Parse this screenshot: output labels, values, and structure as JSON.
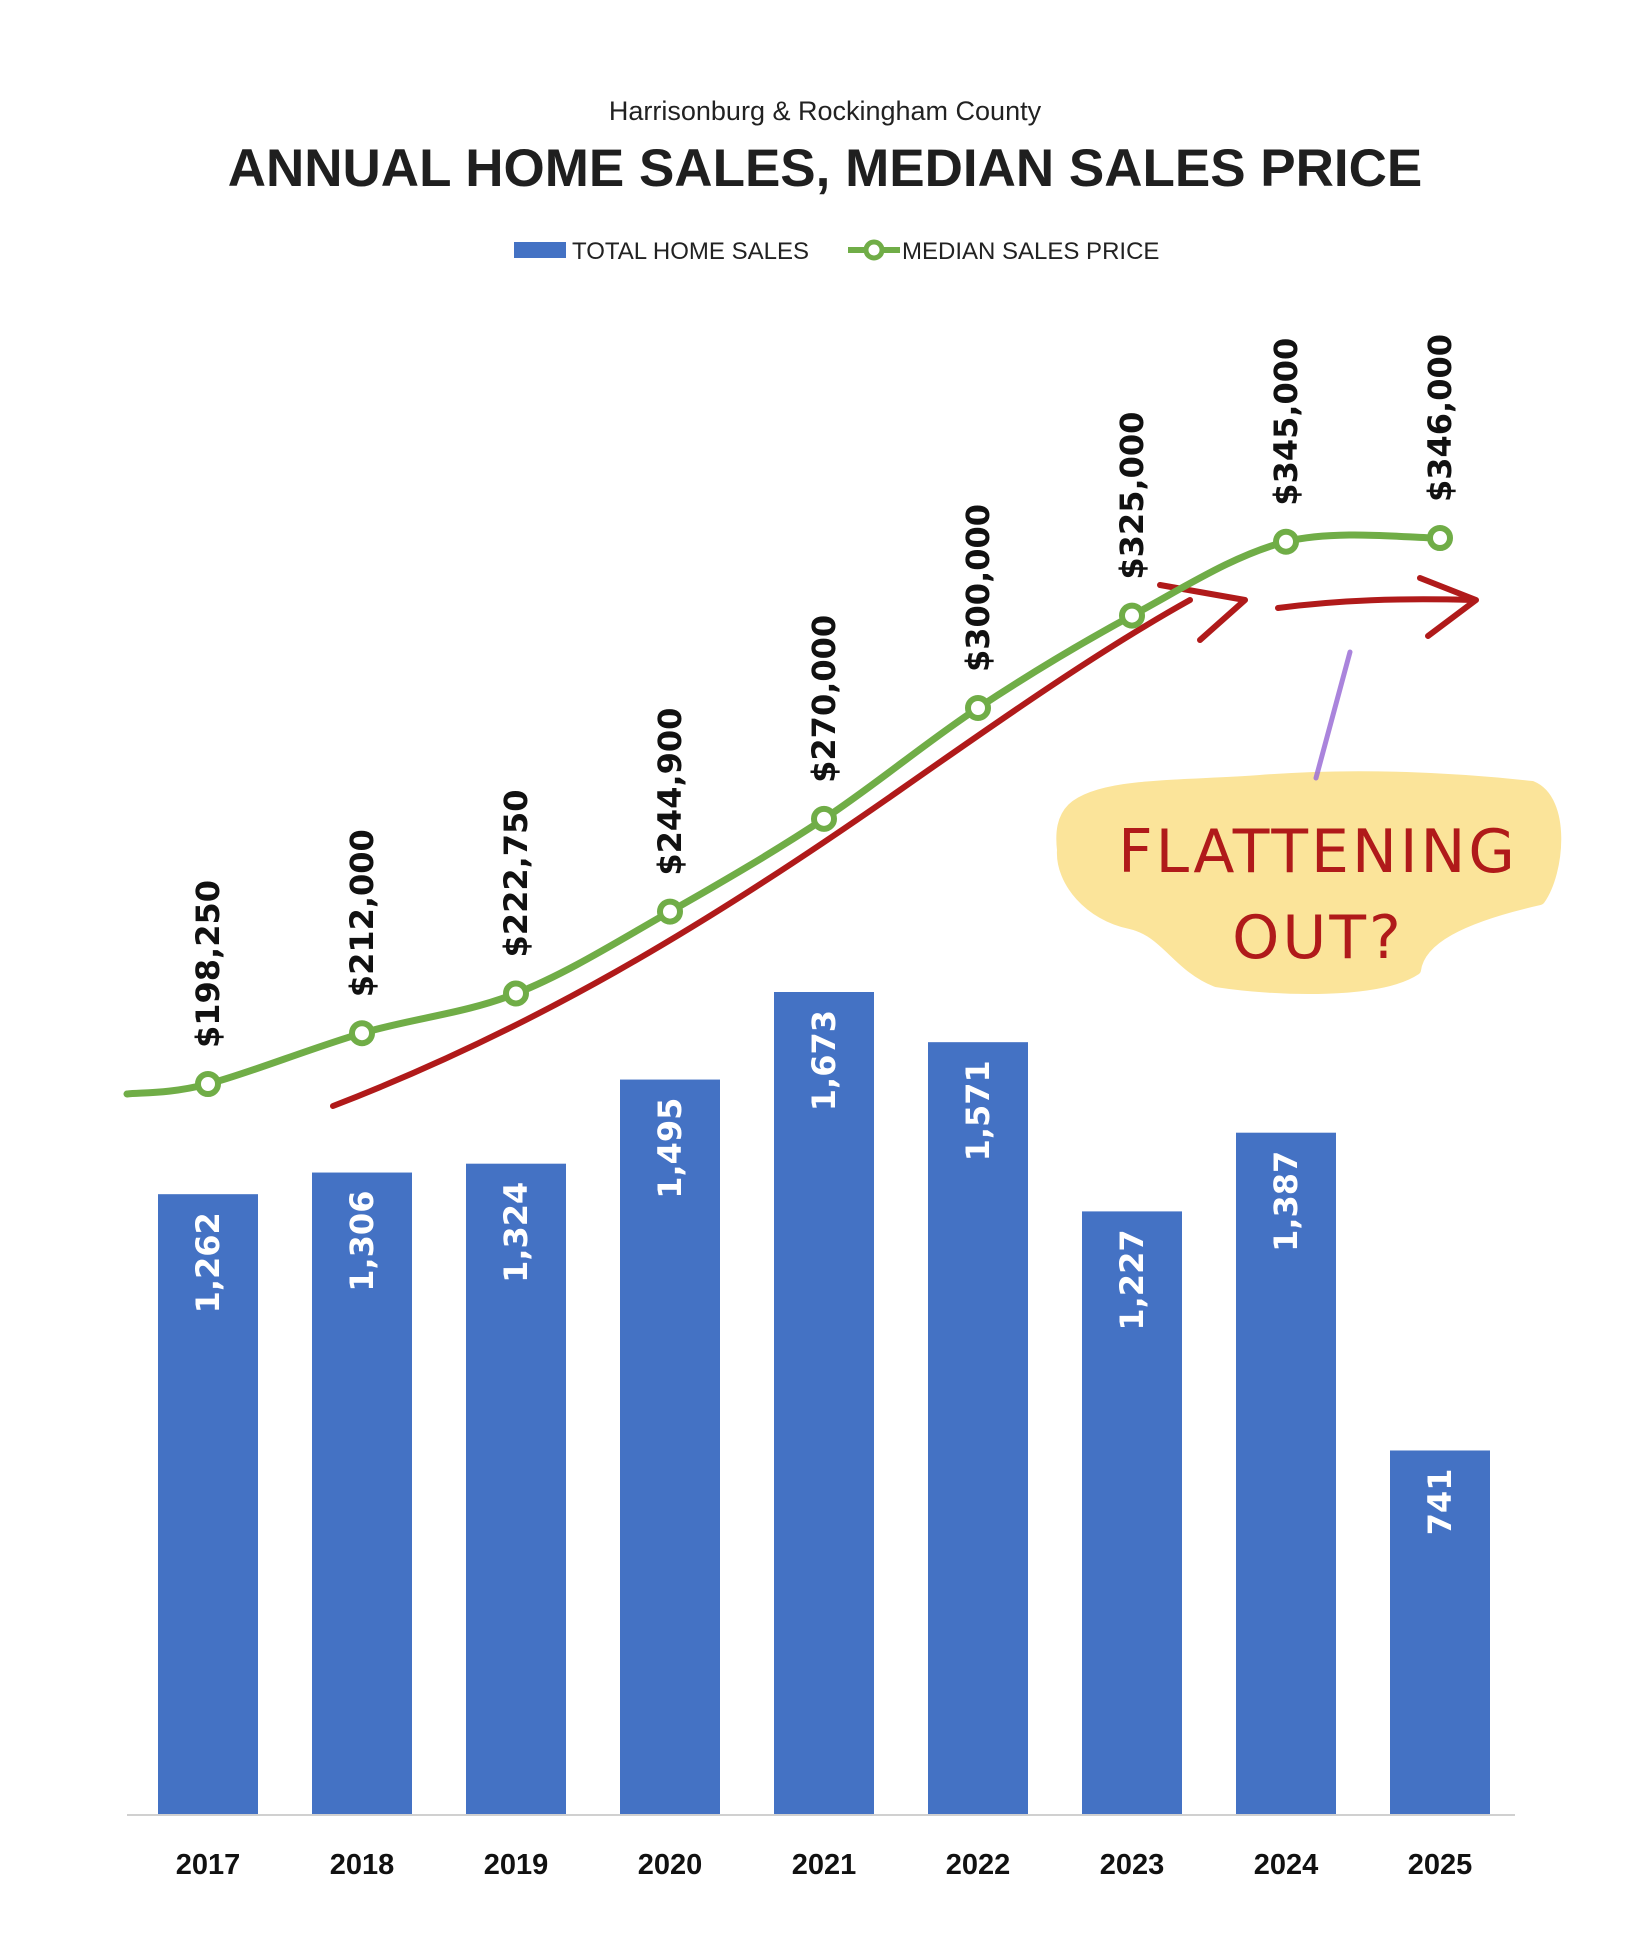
{
  "header": {
    "subtitle": "Harrisonburg & Rockingham County",
    "title": "ANNUAL HOME SALES, MEDIAN SALES PRICE"
  },
  "legend": {
    "bars_label": "TOTAL HOME SALES",
    "line_label": "MEDIAN SALES PRICE"
  },
  "annotation": {
    "line1": "FLATTENING",
    "line2": "OUT?"
  },
  "colors": {
    "bar": "#4472c4",
    "line": "#70ad47",
    "annotation_arrow": "#b01a1a",
    "annotation_highlight": "#fbe49a",
    "annotation_pointer": "#9b6fd6"
  },
  "chart_data": {
    "type": "bar",
    "categories": [
      "2017",
      "2018",
      "2019",
      "2020",
      "2021",
      "2022",
      "2023",
      "2024",
      "2025"
    ],
    "series": [
      {
        "name": "TOTAL HOME SALES",
        "type": "bar",
        "values": [
          1262,
          1306,
          1324,
          1495,
          1673,
          1571,
          1227,
          1387,
          741
        ],
        "labels": [
          "1,262",
          "1,306",
          "1,324",
          "1,495",
          "1,673",
          "1,571",
          "1,227",
          "1,387",
          "741"
        ]
      },
      {
        "name": "MEDIAN SALES PRICE",
        "type": "line",
        "values": [
          198250,
          212000,
          222750,
          244900,
          270000,
          300000,
          325000,
          345000,
          346000
        ],
        "labels": [
          "$198,250",
          "$212,000",
          "$222,750",
          "$244,900",
          "$270,000",
          "$300,000",
          "$325,000",
          "$345,000",
          "$346,000"
        ]
      }
    ],
    "legend_position": "top",
    "grid": false
  }
}
